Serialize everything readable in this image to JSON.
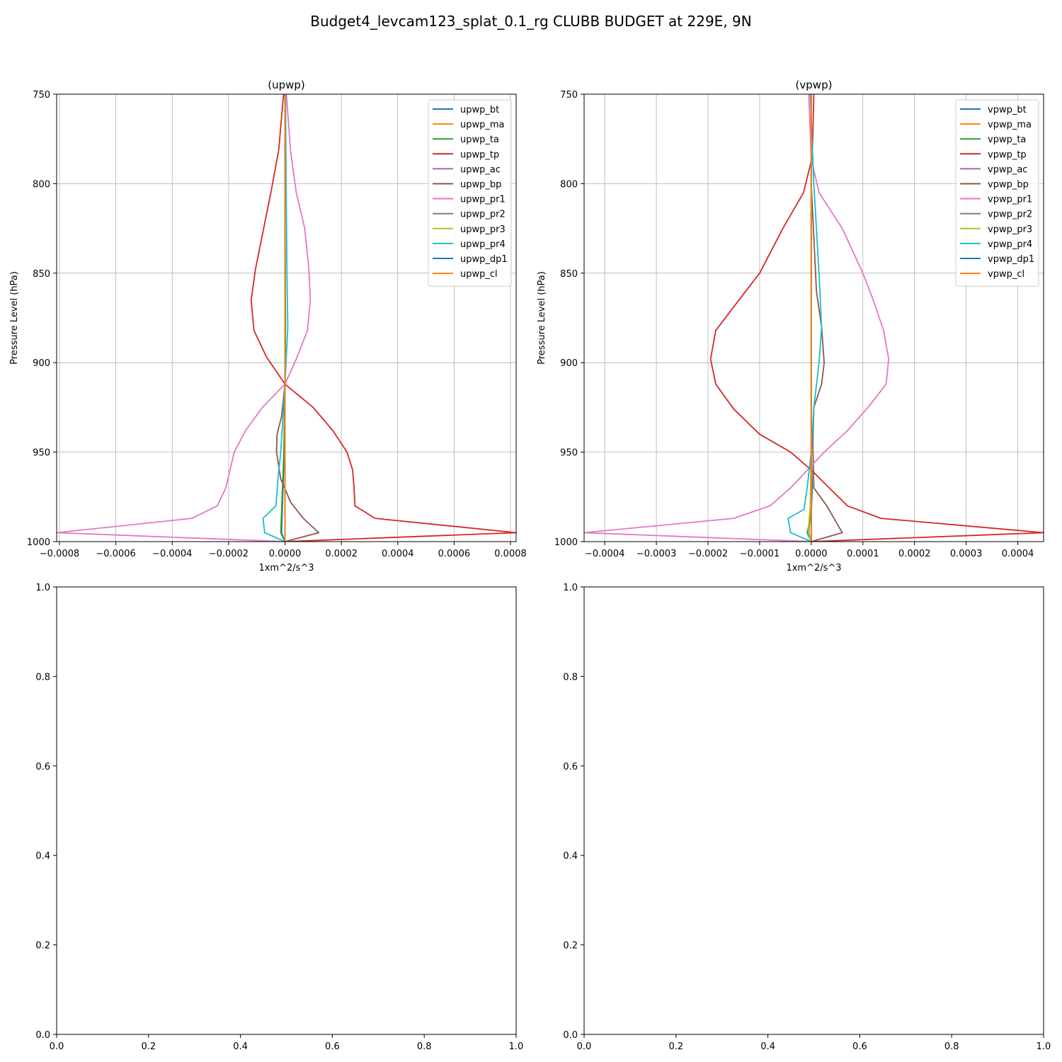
{
  "figure": {
    "title": "Budget4_levcam123_splat_0.1_rg CLUBB BUDGET at 229E, 9N"
  },
  "chart_data": [
    {
      "type": "line",
      "title": "(upwp)",
      "xlabel": "1xm^2/s^3",
      "ylabel": "Pressure Level (hPa)",
      "xlim": [
        -0.00081,
        0.00082
      ],
      "ylim": [
        1000,
        750
      ],
      "y_inverted": true,
      "grid": true,
      "legend_position": "top-right",
      "x_ticks": [
        -0.0008,
        -0.0006,
        -0.0004,
        -0.0002,
        0.0,
        0.0002,
        0.0004,
        0.0006,
        0.0008
      ],
      "x_tick_labels": [
        "−0.0008",
        "−0.0006",
        "−0.0004",
        "−0.0002",
        "0.0000",
        "0.0002",
        "0.0004",
        "0.0006",
        "0.0008"
      ],
      "y_ticks": [
        750,
        800,
        850,
        900,
        950,
        1000
      ],
      "y_tick_labels": [
        "750",
        "800",
        "850",
        "900",
        "950",
        "1000"
      ],
      "series": [
        {
          "name": "upwp_bt",
          "color": "#1f77b4",
          "x": [
            0,
            0,
            5e-07,
            1e-06,
            0,
            -3e-06,
            -1.2e-05,
            0
          ],
          "y": [
            750,
            800,
            850,
            880,
            912,
            950,
            995,
            1000
          ]
        },
        {
          "name": "upwp_ma",
          "color": "#ff7f0e",
          "x": [
            0,
            0,
            0,
            0,
            0,
            0,
            0,
            0
          ],
          "y": [
            750,
            800,
            850,
            880,
            912,
            950,
            995,
            1000
          ]
        },
        {
          "name": "upwp_ta",
          "color": "#2ca02c",
          "x": [
            0,
            0,
            1e-06,
            2e-06,
            0,
            -4e-06,
            -1.5e-05,
            0
          ],
          "y": [
            750,
            800,
            850,
            880,
            912,
            950,
            995,
            1000
          ]
        },
        {
          "name": "upwp_tp",
          "color": "#d62728",
          "x": [
            -5e-06,
            -2.2e-05,
            -5e-05,
            -8.2e-05,
            -0.000105,
            -0.00012,
            -0.00011,
            -6.5e-05,
            0,
            0.0001,
            0.00017,
            0.00022,
            0.00024,
            0.000245,
            0.000248,
            0.00032,
            0.00082,
            0
          ],
          "y": [
            750,
            781,
            805,
            830,
            848,
            865,
            882,
            897,
            912,
            925,
            938,
            950,
            960,
            970,
            980,
            987,
            995,
            1000
          ]
        },
        {
          "name": "upwp_ac",
          "color": "#9467bd",
          "x": [
            0,
            0,
            0,
            0,
            0,
            0,
            0,
            0
          ],
          "y": [
            750,
            800,
            850,
            880,
            912,
            950,
            995,
            1000
          ]
        },
        {
          "name": "upwp_bp",
          "color": "#8c564b",
          "x": [
            0,
            0,
            0,
            0,
            0,
            -1.2e-05,
            -2.8e-05,
            -3e-05,
            -1.5e-05,
            2e-05,
            6.5e-05,
            0.00012,
            0
          ],
          "y": [
            750,
            800,
            850,
            880,
            912,
            930,
            940,
            950,
            965,
            978,
            987,
            995,
            1000
          ]
        },
        {
          "name": "upwp_pr1",
          "color": "#e377c2",
          "x": [
            5e-06,
            2e-05,
            4e-05,
            7e-05,
            8.5e-05,
            9e-05,
            8e-05,
            4e-05,
            0,
            -8e-05,
            -0.00014,
            -0.00018,
            -0.00021,
            -0.00024,
            -0.00033,
            -0.00081,
            0
          ],
          "y": [
            750,
            782,
            805,
            825,
            848,
            865,
            882,
            898,
            912,
            925,
            938,
            950,
            970,
            980,
            987,
            995,
            1000
          ]
        },
        {
          "name": "upwp_pr2",
          "color": "#7f7f7f",
          "x": [
            0,
            0,
            0,
            0,
            0,
            0,
            0,
            0
          ],
          "y": [
            750,
            800,
            850,
            880,
            912,
            950,
            995,
            1000
          ]
        },
        {
          "name": "upwp_pr3",
          "color": "#bcbd22",
          "x": [
            0,
            0,
            0,
            0,
            0,
            0,
            0,
            0
          ],
          "y": [
            750,
            800,
            850,
            880,
            912,
            950,
            995,
            1000
          ]
        },
        {
          "name": "upwp_pr4",
          "color": "#17becf",
          "x": [
            2e-06,
            4e-06,
            7e-06,
            1e-05,
            0,
            -1.5e-05,
            -2.5e-05,
            -3.2e-05,
            -7.8e-05,
            -7.2e-05,
            0
          ],
          "y": [
            750,
            800,
            850,
            880,
            912,
            950,
            965,
            980,
            987,
            995,
            1000
          ]
        },
        {
          "name": "upwp_dp1",
          "color": "#1f77b4",
          "x": [
            0,
            0,
            0,
            0,
            0,
            0,
            0,
            0
          ],
          "y": [
            750,
            800,
            850,
            880,
            912,
            950,
            995,
            1000
          ]
        },
        {
          "name": "upwp_cl",
          "color": "#ff7f0e",
          "x": [
            0,
            0,
            0,
            0,
            0,
            0,
            0,
            0
          ],
          "y": [
            750,
            800,
            850,
            880,
            912,
            950,
            995,
            1000
          ]
        }
      ]
    },
    {
      "type": "line",
      "title": "(vpwp)",
      "xlabel": "1xm^2/s^3",
      "ylabel": "Pressure Level (hPa)",
      "xlim": [
        -0.00044,
        0.00045
      ],
      "ylim": [
        1000,
        750
      ],
      "y_inverted": true,
      "grid": true,
      "legend_position": "top-right",
      "x_ticks": [
        -0.0004,
        -0.0003,
        -0.0002,
        -0.0001,
        0.0,
        0.0001,
        0.0002,
        0.0003,
        0.0004
      ],
      "x_tick_labels": [
        "−0.0004",
        "−0.0003",
        "−0.0002",
        "−0.0001",
        "0.0000",
        "0.0001",
        "0.0002",
        "0.0003",
        "0.0004"
      ],
      "y_ticks": [
        750,
        800,
        850,
        900,
        950,
        1000
      ],
      "y_tick_labels": [
        "750",
        "800",
        "850",
        "900",
        "950",
        "1000"
      ],
      "series": [
        {
          "name": "vpwp_bt",
          "color": "#1f77b4",
          "x": [
            0,
            0,
            0,
            0,
            0,
            2e-06,
            0,
            -8e-06,
            0
          ],
          "y": [
            750,
            800,
            850,
            900,
            950,
            970,
            985,
            995,
            1000
          ]
        },
        {
          "name": "vpwp_ma",
          "color": "#ff7f0e",
          "x": [
            0,
            0,
            0,
            0,
            0,
            0,
            0,
            0
          ],
          "y": [
            750,
            800,
            850,
            900,
            950,
            980,
            995,
            1000
          ]
        },
        {
          "name": "vpwp_ta",
          "color": "#2ca02c",
          "x": [
            0,
            0,
            0,
            0,
            0,
            0,
            -5e-06,
            0
          ],
          "y": [
            750,
            800,
            850,
            900,
            950,
            980,
            995,
            1000
          ]
        },
        {
          "name": "vpwp_tp",
          "color": "#d62728",
          "x": [
            5e-06,
            2e-06,
            -1.5e-05,
            -5.5e-05,
            -0.0001,
            -0.00014,
            -0.000185,
            -0.000195,
            -0.000185,
            -0.00015,
            -0.0001,
            -4e-05,
            0,
            7e-05,
            0.000135,
            0.00045,
            0
          ],
          "y": [
            750,
            785,
            805,
            825,
            850,
            865,
            882,
            898,
            912,
            926,
            940,
            950,
            960,
            980,
            987,
            995,
            1000
          ]
        },
        {
          "name": "vpwp_ac",
          "color": "#9467bd",
          "x": [
            0,
            0,
            0,
            0,
            0,
            0,
            0,
            0
          ],
          "y": [
            750,
            800,
            850,
            900,
            950,
            980,
            995,
            1000
          ]
        },
        {
          "name": "vpwp_bp",
          "color": "#8c564b",
          "x": [
            0,
            0,
            1e-05,
            2e-05,
            2.5e-05,
            2e-05,
            5e-06,
            3e-06,
            5e-06,
            3e-05,
            6e-05,
            0
          ],
          "y": [
            750,
            800,
            860,
            880,
            900,
            912,
            925,
            945,
            970,
            980,
            995,
            1000
          ]
        },
        {
          "name": "vpwp_pr1",
          "color": "#e377c2",
          "x": [
            -5e-06,
            0,
            1.5e-05,
            6e-05,
            0.0001,
            0.00012,
            0.00014,
            0.00015,
            0.000145,
            0.00011,
            7e-05,
            2.5e-05,
            -4e-05,
            -8e-05,
            -0.00015,
            -0.00044,
            0
          ],
          "y": [
            750,
            786,
            805,
            825,
            850,
            865,
            882,
            898,
            912,
            925,
            938,
            950,
            970,
            980,
            987,
            995,
            1000
          ]
        },
        {
          "name": "vpwp_pr2",
          "color": "#7f7f7f",
          "x": [
            0,
            0,
            0,
            0,
            0,
            0,
            0,
            0
          ],
          "y": [
            750,
            800,
            850,
            900,
            950,
            980,
            995,
            1000
          ]
        },
        {
          "name": "vpwp_pr3",
          "color": "#bcbd22",
          "x": [
            0,
            0,
            0,
            0,
            0,
            -2e-06,
            -6e-06,
            0
          ],
          "y": [
            750,
            800,
            850,
            900,
            950,
            980,
            995,
            1000
          ]
        },
        {
          "name": "vpwp_pr4",
          "color": "#17becf",
          "x": [
            -2e-06,
            5e-06,
            1.5e-05,
            2e-05,
            1.5e-05,
            5e-06,
            0,
            -8e-06,
            -1.4e-05,
            -4.5e-05,
            -4e-05,
            0
          ],
          "y": [
            750,
            800,
            850,
            880,
            900,
            925,
            950,
            970,
            982,
            987,
            995,
            1000
          ]
        },
        {
          "name": "vpwp_dp1",
          "color": "#1f77b4",
          "x": [
            0,
            0,
            0,
            0,
            0,
            0,
            0,
            0
          ],
          "y": [
            750,
            800,
            850,
            900,
            950,
            980,
            995,
            1000
          ]
        },
        {
          "name": "vpwp_cl",
          "color": "#ff7f0e",
          "x": [
            0,
            0,
            0,
            0,
            0,
            0,
            0,
            0
          ],
          "y": [
            750,
            800,
            850,
            900,
            950,
            980,
            995,
            1000
          ]
        }
      ]
    },
    {
      "type": "line",
      "title": "",
      "xlim": [
        0,
        1
      ],
      "ylim": [
        0,
        1
      ],
      "grid": false,
      "x_ticks": [
        0,
        0.2,
        0.4,
        0.6,
        0.8,
        1.0
      ],
      "x_tick_labels": [
        "0.0",
        "0.2",
        "0.4",
        "0.6",
        "0.8",
        "1.0"
      ],
      "y_ticks": [
        0,
        0.2,
        0.4,
        0.6,
        0.8,
        1.0
      ],
      "y_tick_labels": [
        "0.0",
        "0.2",
        "0.4",
        "0.6",
        "0.8",
        "1.0"
      ],
      "series": []
    },
    {
      "type": "line",
      "title": "",
      "xlim": [
        0,
        1
      ],
      "ylim": [
        0,
        1
      ],
      "grid": false,
      "x_ticks": [
        0,
        0.2,
        0.4,
        0.6,
        0.8,
        1.0
      ],
      "x_tick_labels": [
        "0.0",
        "0.2",
        "0.4",
        "0.6",
        "0.8",
        "1.0"
      ],
      "y_ticks": [
        0,
        0.2,
        0.4,
        0.6,
        0.8,
        1.0
      ],
      "y_tick_labels": [
        "0.0",
        "0.2",
        "0.4",
        "0.6",
        "0.8",
        "1.0"
      ],
      "series": []
    }
  ]
}
